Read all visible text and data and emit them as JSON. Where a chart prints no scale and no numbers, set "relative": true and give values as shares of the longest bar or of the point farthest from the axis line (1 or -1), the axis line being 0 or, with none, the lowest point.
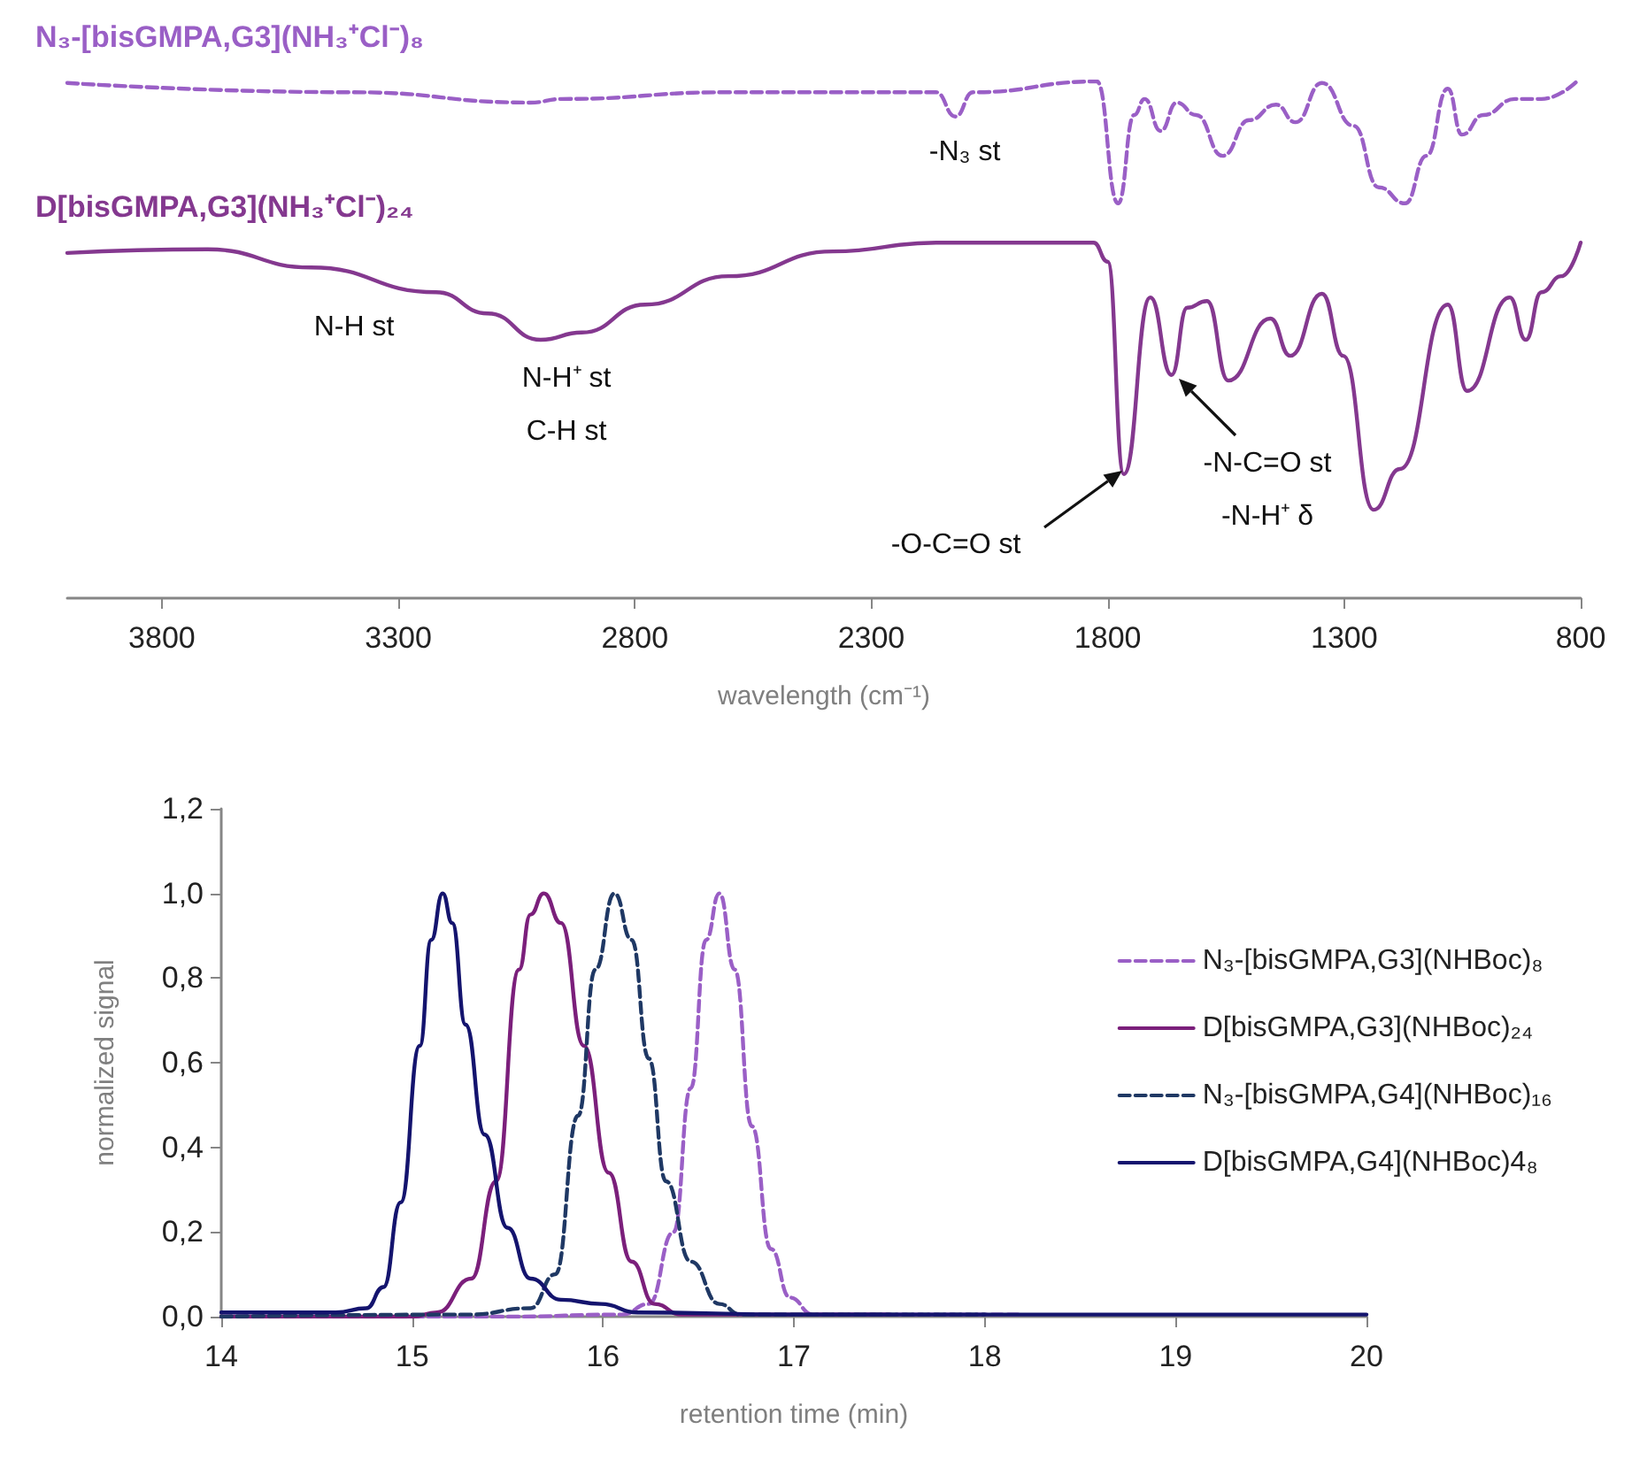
{
  "chart_data": [
    {
      "type": "line",
      "relative": true,
      "xlabel": "wavelength (cm⁻¹)",
      "xlim": [
        4000,
        800
      ],
      "xticks": [
        3800,
        3300,
        2800,
        2300,
        1800,
        1300,
        800
      ],
      "grid": false,
      "legend": false,
      "marker": "none",
      "series": [
        {
          "name": "N₃-[bisGMPA,G3](NH₃⁺Cl⁻)₈",
          "color": "#9a5fc6",
          "line_style": "dashed",
          "x": [
            4000,
            3396,
            3021,
            2954,
            2602,
            2163,
            2122,
            2085,
            1823,
            1778,
            1744,
            1722,
            1688,
            1654,
            1613,
            1557,
            1501,
            1444,
            1403,
            1347,
            1280,
            1227,
            1171,
            1126,
            1081,
            1051,
            1006,
            939,
            883,
            808
          ],
          "values": [
            0.997,
            0.979,
            0.959,
            0.966,
            0.979,
            0.979,
            0.932,
            0.979,
            1.0,
            0.764,
            0.935,
            0.966,
            0.904,
            0.959,
            0.935,
            0.856,
            0.925,
            0.955,
            0.921,
            0.997,
            0.914,
            0.795,
            0.764,
            0.856,
            0.986,
            0.897,
            0.935,
            0.966,
            0.966,
            1.0
          ]
        },
        {
          "name": "D[bisGMPA,G3](NH₃⁺Cl⁻)₂₄",
          "color": "#84388f",
          "line_style": "solid",
          "x": [
            4000,
            3703,
            3485,
            3220,
            3111,
            2999,
            2912,
            2778,
            2602,
            2381,
            2163,
            1830,
            1800,
            1766,
            1710,
            1665,
            1632,
            1590,
            1545,
            1456,
            1414,
            1347,
            1302,
            1238,
            1182,
            1081,
            1040,
            950,
            916,
            883,
            841,
            800
          ],
          "values": [
            0.668,
            0.675,
            0.64,
            0.592,
            0.551,
            0.5,
            0.514,
            0.568,
            0.623,
            0.671,
            0.688,
            0.688,
            0.651,
            0.24,
            0.582,
            0.432,
            0.562,
            0.575,
            0.421,
            0.541,
            0.469,
            0.589,
            0.469,
            0.171,
            0.25,
            0.568,
            0.401,
            0.582,
            0.5,
            0.592,
            0.623,
            0.688
          ]
        }
      ],
      "annotations": [
        "-N₃ st",
        "N-H st",
        "N-H⁺ st",
        "C-H st",
        "-O-C=O st",
        "-N-C=O st",
        "-N-H⁺ δ"
      ]
    },
    {
      "type": "line",
      "xlabel": "retention time (min)",
      "ylabel": "normalized signal",
      "xlim": [
        14,
        20
      ],
      "xticks": [
        14,
        15,
        16,
        17,
        18,
        19,
        20
      ],
      "ylim": [
        0,
        1.2
      ],
      "yticks": [
        {
          "value": 0,
          "label": "0,0"
        },
        {
          "value": 0.2,
          "label": "0,2"
        },
        {
          "value": 0.4,
          "label": "0,4"
        },
        {
          "value": 0.6,
          "label": "0,6"
        },
        {
          "value": 0.8,
          "label": "0,8"
        },
        {
          "value": 1,
          "label": "1,0"
        },
        {
          "value": 1.2,
          "label": "1,2"
        }
      ],
      "grid": false,
      "legend": "right",
      "marker": "none",
      "series": [
        {
          "name": "N₃-[bisGMPA,G3](NHBoc)₈",
          "color": "#9a5fc6",
          "line_style": "dashed",
          "x": [
            14,
            15.5,
            16.1,
            16.24,
            16.37,
            16.46,
            16.54,
            16.61,
            16.69,
            16.78,
            16.88,
            16.98,
            17.1,
            18.2
          ],
          "values": [
            0,
            0,
            0.005,
            0.03,
            0.2,
            0.54,
            0.89,
            1.0,
            0.82,
            0.45,
            0.16,
            0.045,
            0.005,
            0.005
          ]
        },
        {
          "name": "D[bisGMPA,G3](NHBoc)₂₄",
          "color": "#7b1f7b",
          "line_style": "solid",
          "x": [
            14,
            15.0,
            15.13,
            15.31,
            15.44,
            15.56,
            15.62,
            15.69,
            15.78,
            15.9,
            16.03,
            16.15,
            16.27,
            16.41,
            17.5
          ],
          "values": [
            0,
            0,
            0.01,
            0.09,
            0.32,
            0.82,
            0.95,
            1.0,
            0.93,
            0.64,
            0.34,
            0.13,
            0.03,
            0.005,
            0.005
          ]
        },
        {
          "name": "N₃-[bisGMPA,G4](NHBoc)₁₆",
          "color": "#1f3864",
          "line_style": "dashed",
          "x": [
            14,
            15.3,
            15.62,
            15.75,
            15.87,
            15.96,
            16.06,
            16.15,
            16.24,
            16.33,
            16.46,
            16.61,
            16.72,
            18
          ],
          "values": [
            0,
            0.005,
            0.02,
            0.1,
            0.475,
            0.82,
            1.0,
            0.89,
            0.61,
            0.32,
            0.13,
            0.03,
            0.005,
            0.005
          ]
        },
        {
          "name": "D[bisGMPA,G4](NHBoc)4₈",
          "color": "#14146e",
          "line_style": "solid",
          "x": [
            14,
            14.6,
            14.76,
            14.85,
            14.94,
            15.04,
            15.1,
            15.16,
            15.21,
            15.28,
            15.38,
            15.5,
            15.62,
            15.78,
            15.99,
            16.18,
            17,
            20
          ],
          "values": [
            0.01,
            0.01,
            0.02,
            0.07,
            0.27,
            0.64,
            0.89,
            1.0,
            0.93,
            0.69,
            0.43,
            0.21,
            0.09,
            0.04,
            0.03,
            0.01,
            0.005,
            0.005
          ]
        }
      ]
    }
  ]
}
